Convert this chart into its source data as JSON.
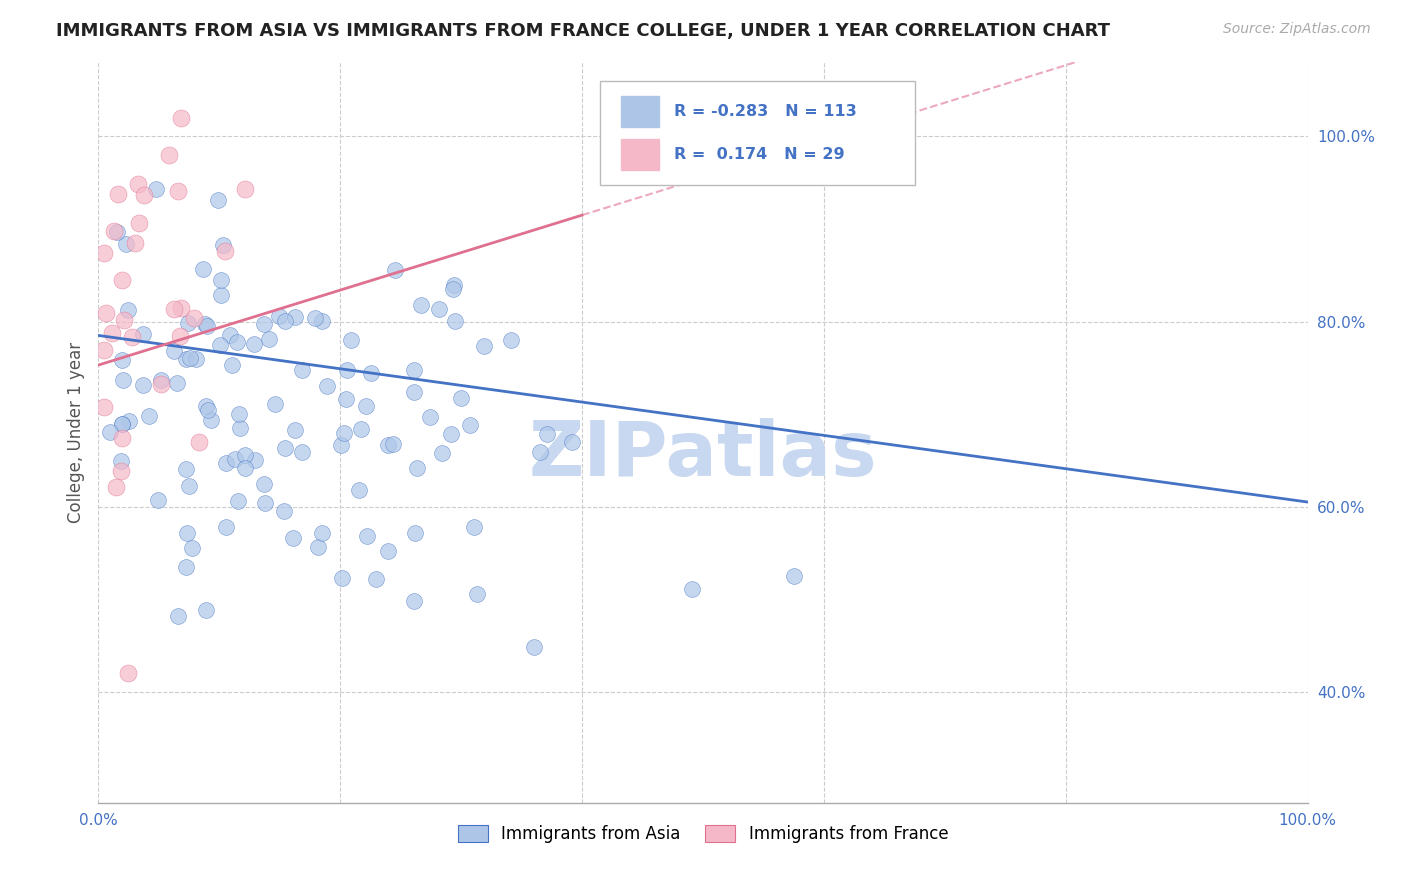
{
  "title": "IMMIGRANTS FROM ASIA VS IMMIGRANTS FROM FRANCE COLLEGE, UNDER 1 YEAR CORRELATION CHART",
  "source": "Source: ZipAtlas.com",
  "ylabel": "College, Under 1 year",
  "xlim": [
    0,
    1.0
  ],
  "ylim": [
    0.28,
    1.08
  ],
  "xtick_vals": [
    0.0,
    0.2,
    0.4,
    0.6,
    0.8,
    1.0
  ],
  "xtick_labels": [
    "0.0%",
    "",
    "",
    "",
    "",
    "100.0%"
  ],
  "ytick_vals": [
    0.4,
    0.6,
    0.8,
    1.0
  ],
  "ytick_labels": [
    "40.0%",
    "60.0%",
    "80.0%",
    "100.0%"
  ],
  "legend_r_asia": "-0.283",
  "legend_n_asia": "113",
  "legend_r_france": "0.174",
  "legend_n_france": "29",
  "color_asia": "#adc6e8",
  "color_france": "#f5b8c8",
  "line_color_asia": "#4472c4",
  "line_color_france": "#e07090",
  "line_color_france_dash": "#e07090",
  "watermark": "ZIPatlas",
  "watermark_color": "#c8d8f0",
  "bg_color": "#ffffff",
  "grid_color": "#cccccc",
  "tick_label_color": "#4472c4",
  "title_color": "#222222",
  "source_color": "#aaaaaa",
  "ylabel_color": "#555555",
  "legend_label_asia": "Immigrants from Asia",
  "legend_label_france": "Immigrants from France",
  "asia_line_start_y": 0.785,
  "asia_line_end_y": 0.605,
  "france_line_start_y": 0.753,
  "france_line_end_x": 0.4,
  "france_line_end_y": 0.915
}
